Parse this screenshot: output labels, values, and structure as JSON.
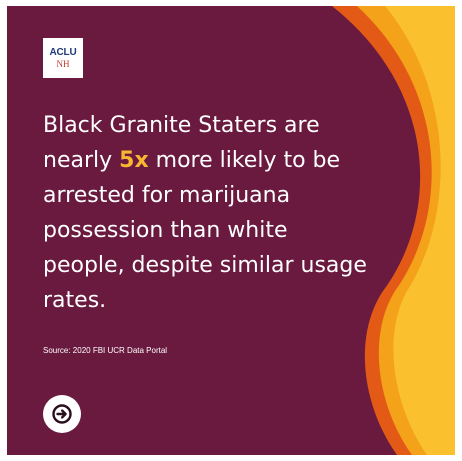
{
  "logo": {
    "line1": "ACLU",
    "line2": "NH"
  },
  "headline": {
    "part1": "Black Granite Staters are nearly ",
    "highlight": "5x",
    "part2": " more likely to be arrested for marijuana possession than white people, despite similar usage rates."
  },
  "source": "Source: 2020 FBI UCR Data Portal",
  "icons": {
    "next": "arrow-right-icon"
  },
  "colors": {
    "background": "#6a1a3e",
    "highlight": "#f7b731",
    "wave_orange": "#e35a16",
    "wave_amber": "#f3a21a",
    "wave_yellow": "#fbc02d"
  }
}
